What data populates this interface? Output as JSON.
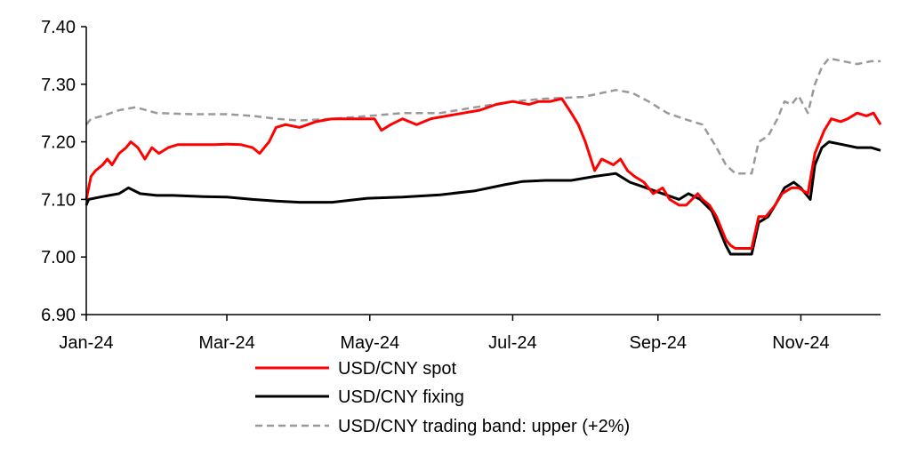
{
  "chart_data": {
    "type": "line",
    "title": "",
    "xlabel": "",
    "ylabel": "",
    "ylim": [
      6.9,
      7.4
    ],
    "xlim": [
      "2024-01-01",
      "2024-12-05"
    ],
    "y_ticks": [
      6.9,
      7.0,
      7.1,
      7.2,
      7.3,
      7.4
    ],
    "y_tick_labels": [
      "6.90",
      "7.00",
      "7.10",
      "7.20",
      "7.30",
      "7.40"
    ],
    "x_ticks": [
      "2024-01-01",
      "2024-03-01",
      "2024-05-01",
      "2024-07-01",
      "2024-09-01",
      "2024-11-01"
    ],
    "x_tick_labels": [
      "Jan-24",
      "Mar-24",
      "May-24",
      "Jul-24",
      "Sep-24",
      "Nov-24"
    ],
    "grid": false,
    "legend_position": "bottom",
    "series": [
      {
        "name": "USD/CNY spot",
        "color": "#ff0000",
        "style": "solid",
        "points": [
          [
            "2024-01-01",
            7.1
          ],
          [
            "2024-01-03",
            7.14
          ],
          [
            "2024-01-05",
            7.15
          ],
          [
            "2024-01-08",
            7.16
          ],
          [
            "2024-01-10",
            7.17
          ],
          [
            "2024-01-12",
            7.16
          ],
          [
            "2024-01-15",
            7.18
          ],
          [
            "2024-01-18",
            7.19
          ],
          [
            "2024-01-20",
            7.2
          ],
          [
            "2024-01-23",
            7.19
          ],
          [
            "2024-01-26",
            7.17
          ],
          [
            "2024-01-29",
            7.19
          ],
          [
            "2024-02-01",
            7.18
          ],
          [
            "2024-02-05",
            7.19
          ],
          [
            "2024-02-09",
            7.195
          ],
          [
            "2024-02-15",
            7.195
          ],
          [
            "2024-02-20",
            7.195
          ],
          [
            "2024-02-25",
            7.195
          ],
          [
            "2024-03-01",
            7.196
          ],
          [
            "2024-03-07",
            7.195
          ],
          [
            "2024-03-12",
            7.19
          ],
          [
            "2024-03-15",
            7.18
          ],
          [
            "2024-03-19",
            7.2
          ],
          [
            "2024-03-22",
            7.225
          ],
          [
            "2024-03-26",
            7.23
          ],
          [
            "2024-04-01",
            7.225
          ],
          [
            "2024-04-08",
            7.235
          ],
          [
            "2024-04-15",
            7.24
          ],
          [
            "2024-04-22",
            7.24
          ],
          [
            "2024-04-29",
            7.24
          ],
          [
            "2024-05-03",
            7.24
          ],
          [
            "2024-05-06",
            7.22
          ],
          [
            "2024-05-10",
            7.23
          ],
          [
            "2024-05-15",
            7.24
          ],
          [
            "2024-05-21",
            7.23
          ],
          [
            "2024-05-27",
            7.24
          ],
          [
            "2024-06-03",
            7.245
          ],
          [
            "2024-06-10",
            7.25
          ],
          [
            "2024-06-17",
            7.255
          ],
          [
            "2024-06-24",
            7.265
          ],
          [
            "2024-07-01",
            7.27
          ],
          [
            "2024-07-08",
            7.265
          ],
          [
            "2024-07-12",
            7.27
          ],
          [
            "2024-07-17",
            7.27
          ],
          [
            "2024-07-22",
            7.275
          ],
          [
            "2024-07-26",
            7.25
          ],
          [
            "2024-07-29",
            7.23
          ],
          [
            "2024-08-01",
            7.2
          ],
          [
            "2024-08-05",
            7.15
          ],
          [
            "2024-08-08",
            7.17
          ],
          [
            "2024-08-13",
            7.16
          ],
          [
            "2024-08-16",
            7.17
          ],
          [
            "2024-08-19",
            7.15
          ],
          [
            "2024-08-22",
            7.14
          ],
          [
            "2024-08-26",
            7.13
          ],
          [
            "2024-08-30",
            7.11
          ],
          [
            "2024-09-03",
            7.12
          ],
          [
            "2024-09-06",
            7.1
          ],
          [
            "2024-09-10",
            7.09
          ],
          [
            "2024-09-13",
            7.09
          ],
          [
            "2024-09-18",
            7.11
          ],
          [
            "2024-09-20",
            7.1
          ],
          [
            "2024-09-23",
            7.09
          ],
          [
            "2024-09-26",
            7.07
          ],
          [
            "2024-09-30",
            7.03
          ],
          [
            "2024-10-02",
            7.02
          ],
          [
            "2024-10-04",
            7.015
          ],
          [
            "2024-10-08",
            7.015
          ],
          [
            "2024-10-11",
            7.015
          ],
          [
            "2024-10-14",
            7.07
          ],
          [
            "2024-10-17",
            7.07
          ],
          [
            "2024-10-21",
            7.09
          ],
          [
            "2024-10-24",
            7.11
          ],
          [
            "2024-10-28",
            7.12
          ],
          [
            "2024-10-31",
            7.12
          ],
          [
            "2024-11-04",
            7.11
          ],
          [
            "2024-11-07",
            7.18
          ],
          [
            "2024-11-11",
            7.22
          ],
          [
            "2024-11-14",
            7.24
          ],
          [
            "2024-11-18",
            7.235
          ],
          [
            "2024-11-21",
            7.24
          ],
          [
            "2024-11-25",
            7.25
          ],
          [
            "2024-11-29",
            7.245
          ],
          [
            "2024-12-02",
            7.25
          ],
          [
            "2024-12-05",
            7.23
          ]
        ]
      },
      {
        "name": "USD/CNY fixing",
        "color": "#000000",
        "style": "solid",
        "points": [
          [
            "2024-01-01",
            7.09
          ],
          [
            "2024-01-02",
            7.1
          ],
          [
            "2024-01-08",
            7.105
          ],
          [
            "2024-01-15",
            7.11
          ],
          [
            "2024-01-19",
            7.12
          ],
          [
            "2024-01-24",
            7.11
          ],
          [
            "2024-01-31",
            7.107
          ],
          [
            "2024-02-07",
            7.107
          ],
          [
            "2024-02-20",
            7.105
          ],
          [
            "2024-03-01",
            7.104
          ],
          [
            "2024-03-12",
            7.1
          ],
          [
            "2024-03-22",
            7.097
          ],
          [
            "2024-04-01",
            7.095
          ],
          [
            "2024-04-15",
            7.095
          ],
          [
            "2024-04-30",
            7.102
          ],
          [
            "2024-05-15",
            7.104
          ],
          [
            "2024-05-31",
            7.108
          ],
          [
            "2024-06-15",
            7.115
          ],
          [
            "2024-06-28",
            7.126
          ],
          [
            "2024-07-05",
            7.131
          ],
          [
            "2024-07-15",
            7.133
          ],
          [
            "2024-07-26",
            7.133
          ],
          [
            "2024-08-05",
            7.14
          ],
          [
            "2024-08-14",
            7.145
          ],
          [
            "2024-08-20",
            7.13
          ],
          [
            "2024-08-27",
            7.12
          ],
          [
            "2024-09-03",
            7.11
          ],
          [
            "2024-09-10",
            7.1
          ],
          [
            "2024-09-14",
            7.11
          ],
          [
            "2024-09-19",
            7.1
          ],
          [
            "2024-09-24",
            7.08
          ],
          [
            "2024-09-27",
            7.05
          ],
          [
            "2024-09-30",
            7.02
          ],
          [
            "2024-10-02",
            7.005
          ],
          [
            "2024-10-11",
            7.005
          ],
          [
            "2024-10-14",
            7.06
          ],
          [
            "2024-10-18",
            7.07
          ],
          [
            "2024-10-21",
            7.09
          ],
          [
            "2024-10-25",
            7.12
          ],
          [
            "2024-10-29",
            7.13
          ],
          [
            "2024-11-01",
            7.12
          ],
          [
            "2024-11-05",
            7.1
          ],
          [
            "2024-11-07",
            7.16
          ],
          [
            "2024-11-10",
            7.19
          ],
          [
            "2024-11-13",
            7.2
          ],
          [
            "2024-11-19",
            7.195
          ],
          [
            "2024-11-25",
            7.19
          ],
          [
            "2024-12-01",
            7.19
          ],
          [
            "2024-12-05",
            7.185
          ]
        ]
      },
      {
        "name": "USD/CNY trading band: upper (+2%)",
        "color": "#999999",
        "style": "dashed",
        "points": [
          [
            "2024-01-01",
            7.23
          ],
          [
            "2024-01-03",
            7.24
          ],
          [
            "2024-01-08",
            7.245
          ],
          [
            "2024-01-15",
            7.255
          ],
          [
            "2024-01-22",
            7.26
          ],
          [
            "2024-01-31",
            7.25
          ],
          [
            "2024-02-15",
            7.248
          ],
          [
            "2024-03-01",
            7.248
          ],
          [
            "2024-03-12",
            7.245
          ],
          [
            "2024-03-22",
            7.24
          ],
          [
            "2024-04-01",
            7.237
          ],
          [
            "2024-04-15",
            7.24
          ],
          [
            "2024-05-01",
            7.245
          ],
          [
            "2024-05-15",
            7.25
          ],
          [
            "2024-05-31",
            7.25
          ],
          [
            "2024-06-15",
            7.26
          ],
          [
            "2024-07-01",
            7.27
          ],
          [
            "2024-07-15",
            7.275
          ],
          [
            "2024-07-31",
            7.278
          ],
          [
            "2024-08-14",
            7.29
          ],
          [
            "2024-08-21",
            7.285
          ],
          [
            "2024-08-28",
            7.27
          ],
          [
            "2024-09-05",
            7.25
          ],
          [
            "2024-09-12",
            7.24
          ],
          [
            "2024-09-20",
            7.23
          ],
          [
            "2024-09-26",
            7.19
          ],
          [
            "2024-09-30",
            7.16
          ],
          [
            "2024-10-04",
            7.145
          ],
          [
            "2024-10-11",
            7.145
          ],
          [
            "2024-10-14",
            7.2
          ],
          [
            "2024-10-18",
            7.21
          ],
          [
            "2024-10-22",
            7.24
          ],
          [
            "2024-10-25",
            7.27
          ],
          [
            "2024-10-28",
            7.265
          ],
          [
            "2024-10-31",
            7.28
          ],
          [
            "2024-11-04",
            7.25
          ],
          [
            "2024-11-07",
            7.3
          ],
          [
            "2024-11-10",
            7.33
          ],
          [
            "2024-11-13",
            7.345
          ],
          [
            "2024-11-19",
            7.34
          ],
          [
            "2024-11-25",
            7.335
          ],
          [
            "2024-12-01",
            7.34
          ],
          [
            "2024-12-05",
            7.34
          ]
        ]
      }
    ]
  }
}
